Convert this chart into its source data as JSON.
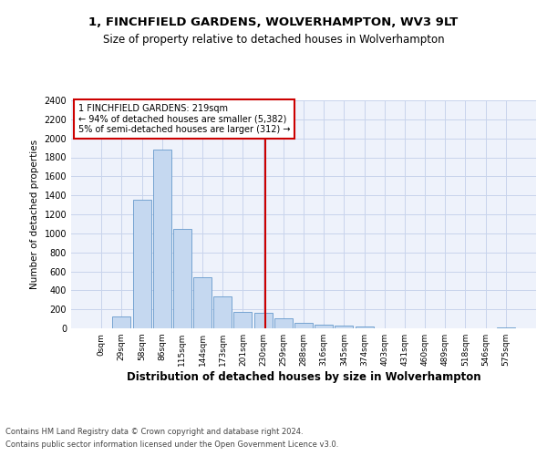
{
  "title1": "1, FINCHFIELD GARDENS, WOLVERHAMPTON, WV3 9LT",
  "title2": "Size of property relative to detached houses in Wolverhampton",
  "xlabel": "Distribution of detached houses by size in Wolverhampton",
  "ylabel": "Number of detached properties",
  "bar_labels": [
    "0sqm",
    "29sqm",
    "58sqm",
    "86sqm",
    "115sqm",
    "144sqm",
    "173sqm",
    "201sqm",
    "230sqm",
    "259sqm",
    "288sqm",
    "316sqm",
    "345sqm",
    "374sqm",
    "403sqm",
    "431sqm",
    "460sqm",
    "489sqm",
    "518sqm",
    "546sqm",
    "575sqm"
  ],
  "bar_values": [
    0,
    125,
    1350,
    1880,
    1050,
    540,
    340,
    175,
    160,
    105,
    60,
    40,
    25,
    20,
    0,
    0,
    0,
    0,
    0,
    0,
    10
  ],
  "bar_color": "#c5d8f0",
  "bar_edge_color": "#6699cc",
  "vline_color": "#cc0000",
  "annotation_title": "1 FINCHFIELD GARDENS: 219sqm",
  "annotation_line1": "← 94% of detached houses are smaller (5,382)",
  "annotation_line2": "5% of semi-detached houses are larger (312) →",
  "annotation_box_color": "#cc0000",
  "ylim": [
    0,
    2400
  ],
  "yticks": [
    0,
    200,
    400,
    600,
    800,
    1000,
    1200,
    1400,
    1600,
    1800,
    2000,
    2200,
    2400
  ],
  "footer1": "Contains HM Land Registry data © Crown copyright and database right 2024.",
  "footer2": "Contains public sector information licensed under the Open Government Licence v3.0.",
  "bg_color": "#eef2fb",
  "grid_color": "#c8d4ec"
}
